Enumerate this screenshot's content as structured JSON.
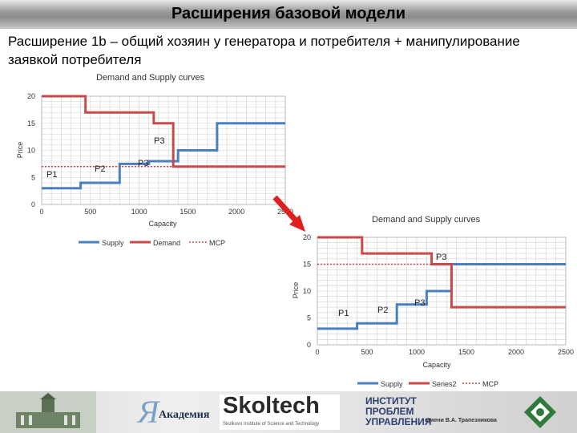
{
  "slide": {
    "title": "Расширения базовой модели",
    "subtitle": "Расширение 1b – общий хозяин у генератора и потребителя + манипулирование заявкой потребителя"
  },
  "colors": {
    "supply": "#4a7fc1",
    "demand": "#c94a4a",
    "mcp": "#c94a4a",
    "grid": "#d0d0d0",
    "arrow": "#e02020"
  },
  "chart_data": [
    {
      "type": "line",
      "title": "Demand and Supply curves",
      "xlabel": "Capacity",
      "ylabel": "Price",
      "xlim": [
        0,
        2500
      ],
      "ylim": [
        0,
        20
      ],
      "x_ticks": [
        "0",
        "500",
        "1000",
        "1500",
        "2000",
        "2500"
      ],
      "y_ticks": [
        "0",
        "5",
        "10",
        "15",
        "20"
      ],
      "grid": true,
      "legend_position": "bottom",
      "series": [
        {
          "name": "Supply",
          "points": [
            [
              0,
              3
            ],
            [
              400,
              3
            ],
            [
              400,
              4
            ],
            [
              800,
              4
            ],
            [
              800,
              7.5
            ],
            [
              1100,
              7.5
            ],
            [
              1100,
              8
            ],
            [
              1400,
              8
            ],
            [
              1400,
              10
            ],
            [
              1800,
              10
            ],
            [
              1800,
              15
            ],
            [
              2500,
              15
            ]
          ]
        },
        {
          "name": "Demand",
          "points": [
            [
              0,
              20
            ],
            [
              450,
              20
            ],
            [
              450,
              17
            ],
            [
              1150,
              17
            ],
            [
              1150,
              15
            ],
            [
              1350,
              15
            ],
            [
              1350,
              7
            ],
            [
              2500,
              7
            ]
          ]
        },
        {
          "name": "MCP",
          "points": [
            [
              0,
              7
            ],
            [
              1350,
              7
            ]
          ]
        }
      ],
      "annotations": [
        "P1",
        "P2",
        "P3",
        "P3"
      ]
    },
    {
      "type": "line",
      "title": "Demand and Supply curves",
      "xlabel": "Capacity",
      "ylabel": "Price",
      "xlim": [
        0,
        2500
      ],
      "ylim": [
        0,
        20
      ],
      "x_ticks": [
        "0",
        "500",
        "1000",
        "1500",
        "2000",
        "2500"
      ],
      "y_ticks": [
        "0",
        "5",
        "10",
        "15",
        "20"
      ],
      "grid": true,
      "legend_position": "bottom",
      "series": [
        {
          "name": "Supply",
          "points": [
            [
              0,
              3
            ],
            [
              400,
              3
            ],
            [
              400,
              4
            ],
            [
              800,
              4
            ],
            [
              800,
              7.5
            ],
            [
              1100,
              7.5
            ],
            [
              1100,
              10
            ],
            [
              1350,
              10
            ],
            [
              1350,
              15
            ],
            [
              2500,
              15
            ]
          ]
        },
        {
          "name": "Series2",
          "points": [
            [
              0,
              20
            ],
            [
              450,
              20
            ],
            [
              450,
              17
            ],
            [
              1150,
              17
            ],
            [
              1150,
              15
            ],
            [
              1350,
              15
            ],
            [
              1350,
              7
            ],
            [
              2500,
              7
            ]
          ]
        },
        {
          "name": "MCP",
          "points": [
            [
              0,
              15
            ],
            [
              1350,
              15
            ]
          ]
        }
      ],
      "annotations": [
        "P1",
        "P2",
        "P3",
        "P3"
      ]
    }
  ],
  "footer": {
    "logo1_text": "Академия",
    "logo2_text": "Skoltech",
    "logo2_sub": "Skolkovo Institute of Science and Technology",
    "logo3_line1": "ИНСТИТУТ",
    "logo3_line2": "ПРОБЛЕМ",
    "logo3_line3": "УПРАВЛЕНИЯ",
    "logo3_sub": "имени В.А. Трапезникова"
  }
}
